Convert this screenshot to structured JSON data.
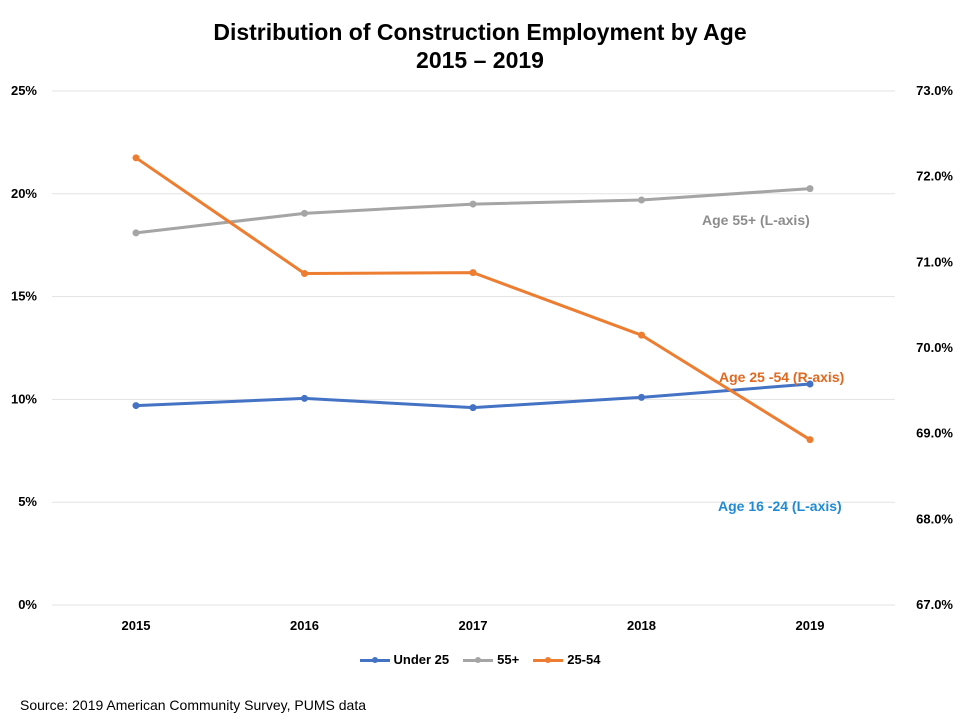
{
  "title_line1": "Distribution of Construction Employment by Age",
  "title_line2": "2015 – 2019",
  "source": "Source: 2019 American Community Survey, PUMS data",
  "colors": {
    "under25": "#4472C4",
    "age55": "#A5A5A5",
    "age2554": "#ED7D31",
    "ann_under25": "#1F8AD6",
    "ann_55": "#8C8C8C",
    "ann_2554": "#E0681F",
    "grid": "#E3E3E3"
  },
  "chart_data": {
    "type": "line",
    "title": "Distribution of Construction Employment by Age 2015 – 2019",
    "categories": [
      "2015",
      "2016",
      "2017",
      "2018",
      "2019"
    ],
    "left_axis": {
      "ylim": [
        0,
        25
      ],
      "ticks": [
        0,
        5,
        10,
        15,
        20,
        25
      ],
      "tick_labels": [
        "0%",
        "5%",
        "10%",
        "15%",
        "20%",
        "25%"
      ]
    },
    "right_axis": {
      "ylim": [
        67.0,
        73.0
      ],
      "ticks": [
        67,
        68,
        69,
        70,
        71,
        72,
        73
      ],
      "tick_labels": [
        "67.0%",
        "68.0%",
        "69.0%",
        "70.0%",
        "71.0%",
        "72.0%",
        "73.0%"
      ]
    },
    "grid": true,
    "legend_position": "bottom",
    "series": [
      {
        "name": "Under 25",
        "axis": "left",
        "color_key": "under25",
        "values": [
          9.7,
          10.05,
          9.6,
          10.1,
          10.75
        ]
      },
      {
        "name": "55+",
        "axis": "left",
        "color_key": "age55",
        "values": [
          18.1,
          19.05,
          19.5,
          19.7,
          20.25
        ]
      },
      {
        "name": "25-54",
        "axis": "right",
        "color_key": "age2554",
        "values": [
          72.22,
          70.87,
          70.88,
          70.15,
          68.93
        ]
      }
    ],
    "annotations": [
      {
        "text": "Age 55+ (L-axis)",
        "color_key": "ann_55"
      },
      {
        "text": "Age 25 -54 (R-axis)",
        "color_key": "ann_2554"
      },
      {
        "text": "Age 16 -24 (L-axis)",
        "color_key": "ann_under25"
      }
    ]
  }
}
